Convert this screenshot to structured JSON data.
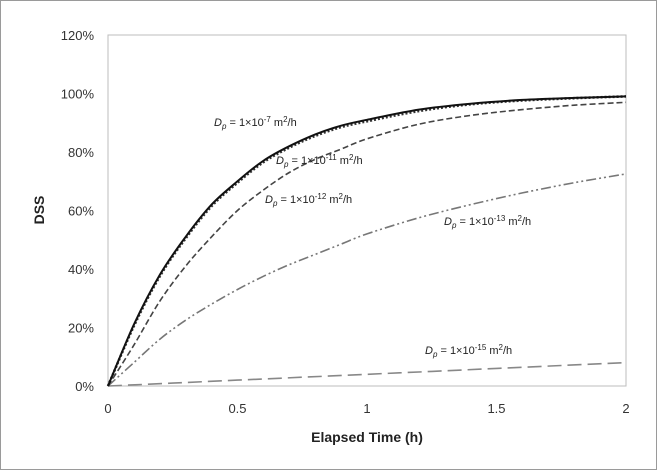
{
  "chart_data": {
    "type": "line",
    "xlabel": "Elapsed Time (h)",
    "ylabel": "DSS",
    "xlim": [
      0,
      2
    ],
    "ylim": [
      0,
      120
    ],
    "x_ticks": [
      "0",
      "0.5",
      "1",
      "1.5",
      "2"
    ],
    "y_ticks": [
      "0%",
      "20%",
      "40%",
      "60%",
      "80%",
      "100%",
      "120%"
    ],
    "grid": false,
    "series": [
      {
        "name": "Dp = 1×10-7 m2/h",
        "dash": "solid",
        "color": "#111111",
        "x": [
          0,
          0.1,
          0.2,
          0.3,
          0.4,
          0.5,
          0.6,
          0.7,
          0.8,
          0.9,
          1.0,
          1.2,
          1.4,
          1.6,
          1.8,
          2.0
        ],
        "y": [
          0,
          21,
          38,
          51,
          62,
          70,
          77,
          82,
          86,
          89,
          91,
          94.5,
          96.5,
          97.8,
          98.5,
          99
        ]
      },
      {
        "name": "Dp = 1×10-11 m2/h",
        "dash": "dotted",
        "color": "#333333",
        "x": [
          0,
          0.1,
          0.2,
          0.3,
          0.4,
          0.5,
          0.6,
          0.7,
          0.8,
          0.9,
          1.0,
          1.2,
          1.4,
          1.6,
          1.8,
          2.0
        ],
        "y": [
          0,
          20.5,
          37.5,
          50.5,
          61.5,
          69.5,
          76.5,
          81.5,
          85.5,
          88.5,
          90.5,
          94,
          96.3,
          97.6,
          98.4,
          99
        ]
      },
      {
        "name": "Dp = 1×10-12 m2/h",
        "dash": "dashed",
        "color": "#444444",
        "x": [
          0,
          0.1,
          0.2,
          0.3,
          0.4,
          0.5,
          0.6,
          0.7,
          0.8,
          0.9,
          1.0,
          1.2,
          1.4,
          1.6,
          1.8,
          2.0
        ],
        "y": [
          0,
          14,
          29,
          41,
          51,
          60,
          67,
          73,
          77.5,
          81,
          84.5,
          89.5,
          92.5,
          94.5,
          96,
          97
        ]
      },
      {
        "name": "Dp = 1×10-13 m2/h",
        "dash": "dashdotdot",
        "color": "#777777",
        "x": [
          0,
          0.1,
          0.2,
          0.3,
          0.4,
          0.5,
          0.6,
          0.7,
          0.8,
          0.9,
          1.0,
          1.2,
          1.4,
          1.6,
          1.8,
          2.0
        ],
        "y": [
          0,
          8,
          16,
          22.5,
          28,
          33,
          37.5,
          41.5,
          45,
          48.5,
          52,
          57.5,
          62,
          66,
          69.5,
          72.5
        ]
      },
      {
        "name": "Dp = 1×10-15 m2/h",
        "dash": "longdash",
        "color": "#888888",
        "x": [
          0,
          0.25,
          0.5,
          0.75,
          1.0,
          1.25,
          1.5,
          1.75,
          2.0
        ],
        "y": [
          0,
          1,
          2,
          3,
          4,
          5,
          6,
          7,
          8
        ]
      }
    ],
    "annotations": [
      {
        "series": 0,
        "sym": "D",
        "sub": "p",
        "mid": " = 1×10",
        "exp": "-7",
        "unit": " m",
        "uexp": "2",
        "tail": "/h"
      },
      {
        "series": 1,
        "sym": "D",
        "sub": "p",
        "mid": " = 1×10",
        "exp": "-11",
        "unit": " m",
        "uexp": "2",
        "tail": "/h"
      },
      {
        "series": 2,
        "sym": "D",
        "sub": "p",
        "mid": " = 1×10",
        "exp": "-12",
        "unit": " m",
        "uexp": "2",
        "tail": "/h"
      },
      {
        "series": 3,
        "sym": "D",
        "sub": "p",
        "mid": " = 1×10",
        "exp": "-13",
        "unit": " m",
        "uexp": "2",
        "tail": "/h"
      },
      {
        "series": 4,
        "sym": "D",
        "sub": "p",
        "mid": " = 1×10",
        "exp": "-15",
        "unit": " m",
        "uexp": "2",
        "tail": "/h"
      }
    ]
  }
}
